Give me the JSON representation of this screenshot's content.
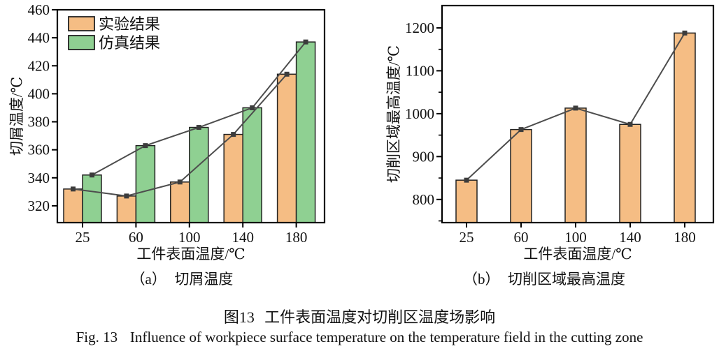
{
  "figure": {
    "caption_zh": {
      "prefix": "图13",
      "text": "工件表面温度对切削区温度场影响"
    },
    "caption_en": {
      "prefix": "Fig. 13",
      "text": "Influence of workpiece surface temperature on the temperature field in the cutting zone"
    }
  },
  "colors": {
    "experiment_bar": "#F5BD84",
    "simulation_bar": "#8FD092",
    "bar_border": "#222222",
    "overlay_line": "#4D4D4D",
    "marker": "#3C3C3C",
    "axis": "#000000",
    "text": "#111111"
  },
  "chart_data": [
    {
      "type": "bar",
      "panel": "a",
      "subcaption": {
        "prefix": "（a）",
        "label": "切屑温度"
      },
      "categories": [
        25,
        60,
        100,
        140,
        180
      ],
      "xlabel": "工件表面温度/℃",
      "ylabel": "切屑温度/℃",
      "ylim": [
        308,
        460
      ],
      "yticks": [
        320,
        340,
        360,
        380,
        400,
        420,
        440,
        460
      ],
      "grid": false,
      "legend_position": "top-left",
      "overlay": "line-with-square-markers",
      "series": [
        {
          "name": "实验结果",
          "color_key": "experiment_bar",
          "values": [
            332,
            327,
            337,
            371,
            414
          ]
        },
        {
          "name": "仿真结果",
          "color_key": "simulation_bar",
          "values": [
            342,
            363,
            376,
            390,
            437
          ]
        }
      ]
    },
    {
      "type": "bar",
      "panel": "b",
      "subcaption": {
        "prefix": "（b）",
        "label": "切削区域最高温度"
      },
      "categories": [
        25,
        60,
        100,
        140,
        180
      ],
      "xlabel": "工件表面温度/℃",
      "ylabel": "切削区域最高温度/℃",
      "ylim": [
        746,
        1252
      ],
      "yticks": [
        800,
        900,
        1000,
        1100,
        1200
      ],
      "minor_yticks": [
        750,
        850,
        950,
        1050,
        1150
      ],
      "grid": false,
      "overlay": "line-with-square-markers",
      "series": [
        {
          "name": "切削区域最高温度",
          "color_key": "experiment_bar",
          "values": [
            845,
            963,
            1013,
            975,
            1188
          ]
        }
      ]
    }
  ]
}
